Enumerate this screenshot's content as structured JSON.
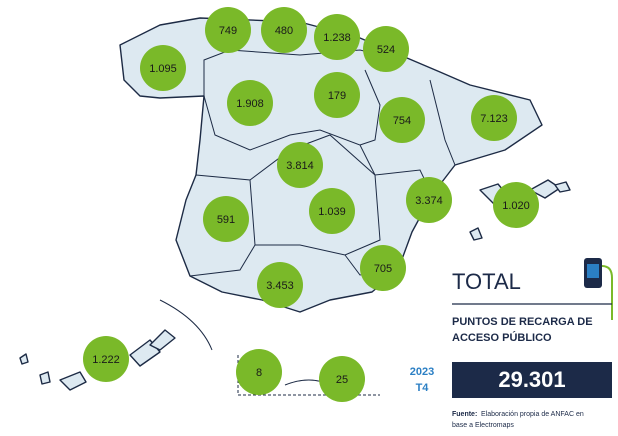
{
  "map": {
    "regions": [
      {
        "label": "1.095"
      },
      {
        "label": "749"
      },
      {
        "label": "480"
      },
      {
        "label": "1.238"
      },
      {
        "label": "524"
      },
      {
        "label": "1.908"
      },
      {
        "label": "179"
      },
      {
        "label": "754"
      },
      {
        "label": "7.123"
      },
      {
        "label": "3.814"
      },
      {
        "label": "591"
      },
      {
        "label": "1.039"
      },
      {
        "label": "3.374"
      },
      {
        "label": "1.020"
      },
      {
        "label": "705"
      },
      {
        "label": "3.453"
      },
      {
        "label": "1.222"
      },
      {
        "label": "8"
      },
      {
        "label": "25"
      }
    ]
  },
  "panel": {
    "title": "TOTAL",
    "subtitle": [
      "PUNTOS DE RECARGA DE",
      "ACCESO PÚBLICO"
    ],
    "year": "2023",
    "quarter": "T4",
    "total": "29.301",
    "source_label": "Fuente:",
    "source": [
      "Elaboración propia de ANFAC en",
      "base a Electromaps"
    ]
  }
}
